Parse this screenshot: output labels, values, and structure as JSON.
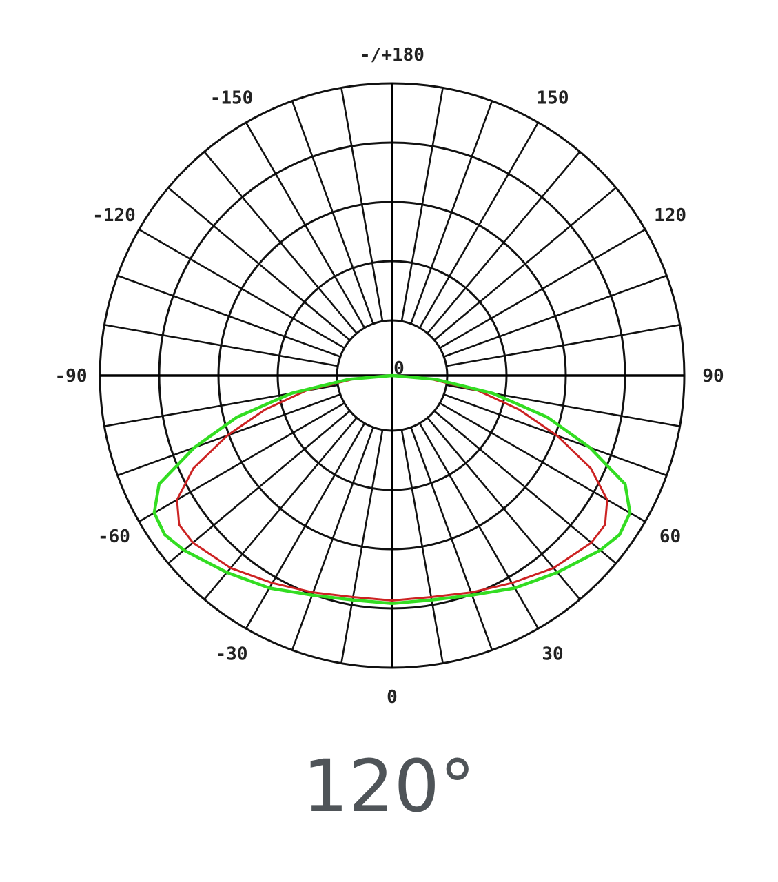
{
  "chart_data": {
    "type": "polar-line",
    "title": "",
    "caption": "120°",
    "angle_ticks": [
      {
        "angle": 0,
        "label": "0"
      },
      {
        "angle": 30,
        "label": "30"
      },
      {
        "angle": 60,
        "label": "60"
      },
      {
        "angle": 90,
        "label": "90"
      },
      {
        "angle": 120,
        "label": "120"
      },
      {
        "angle": 150,
        "label": "150"
      },
      {
        "angle": 180,
        "label": "-/+180"
      },
      {
        "angle": -150,
        "label": "-150"
      },
      {
        "angle": -120,
        "label": "-120"
      },
      {
        "angle": -90,
        "label": "-90"
      },
      {
        "angle": -60,
        "label": "-60"
      },
      {
        "angle": -30,
        "label": "-30"
      }
    ],
    "center_label": "0",
    "radial_rings": 5,
    "spoke_step_deg": 10,
    "radial_range": [
      0,
      1
    ],
    "angles": [
      -90,
      -85,
      -80,
      -75,
      -70,
      -65,
      -60,
      -55,
      -50,
      -40,
      -30,
      -20,
      -10,
      0,
      10,
      20,
      30,
      40,
      50,
      55,
      60,
      65,
      70,
      75,
      80,
      85,
      90
    ],
    "series": [
      {
        "color": "#cc2222",
        "values": [
          0,
          0.13,
          0.3,
          0.45,
          0.6,
          0.75,
          0.85,
          0.89,
          0.89,
          0.86,
          0.82,
          0.79,
          0.77,
          0.77,
          0.77,
          0.79,
          0.82,
          0.86,
          0.89,
          0.89,
          0.85,
          0.75,
          0.6,
          0.45,
          0.3,
          0.13,
          0
        ]
      },
      {
        "color": "#33dd22",
        "values": [
          0,
          0.15,
          0.35,
          0.55,
          0.72,
          0.88,
          0.94,
          0.95,
          0.93,
          0.88,
          0.84,
          0.8,
          0.78,
          0.78,
          0.78,
          0.8,
          0.84,
          0.88,
          0.93,
          0.95,
          0.94,
          0.88,
          0.72,
          0.55,
          0.35,
          0.15,
          0
        ]
      }
    ],
    "grid": true
  }
}
